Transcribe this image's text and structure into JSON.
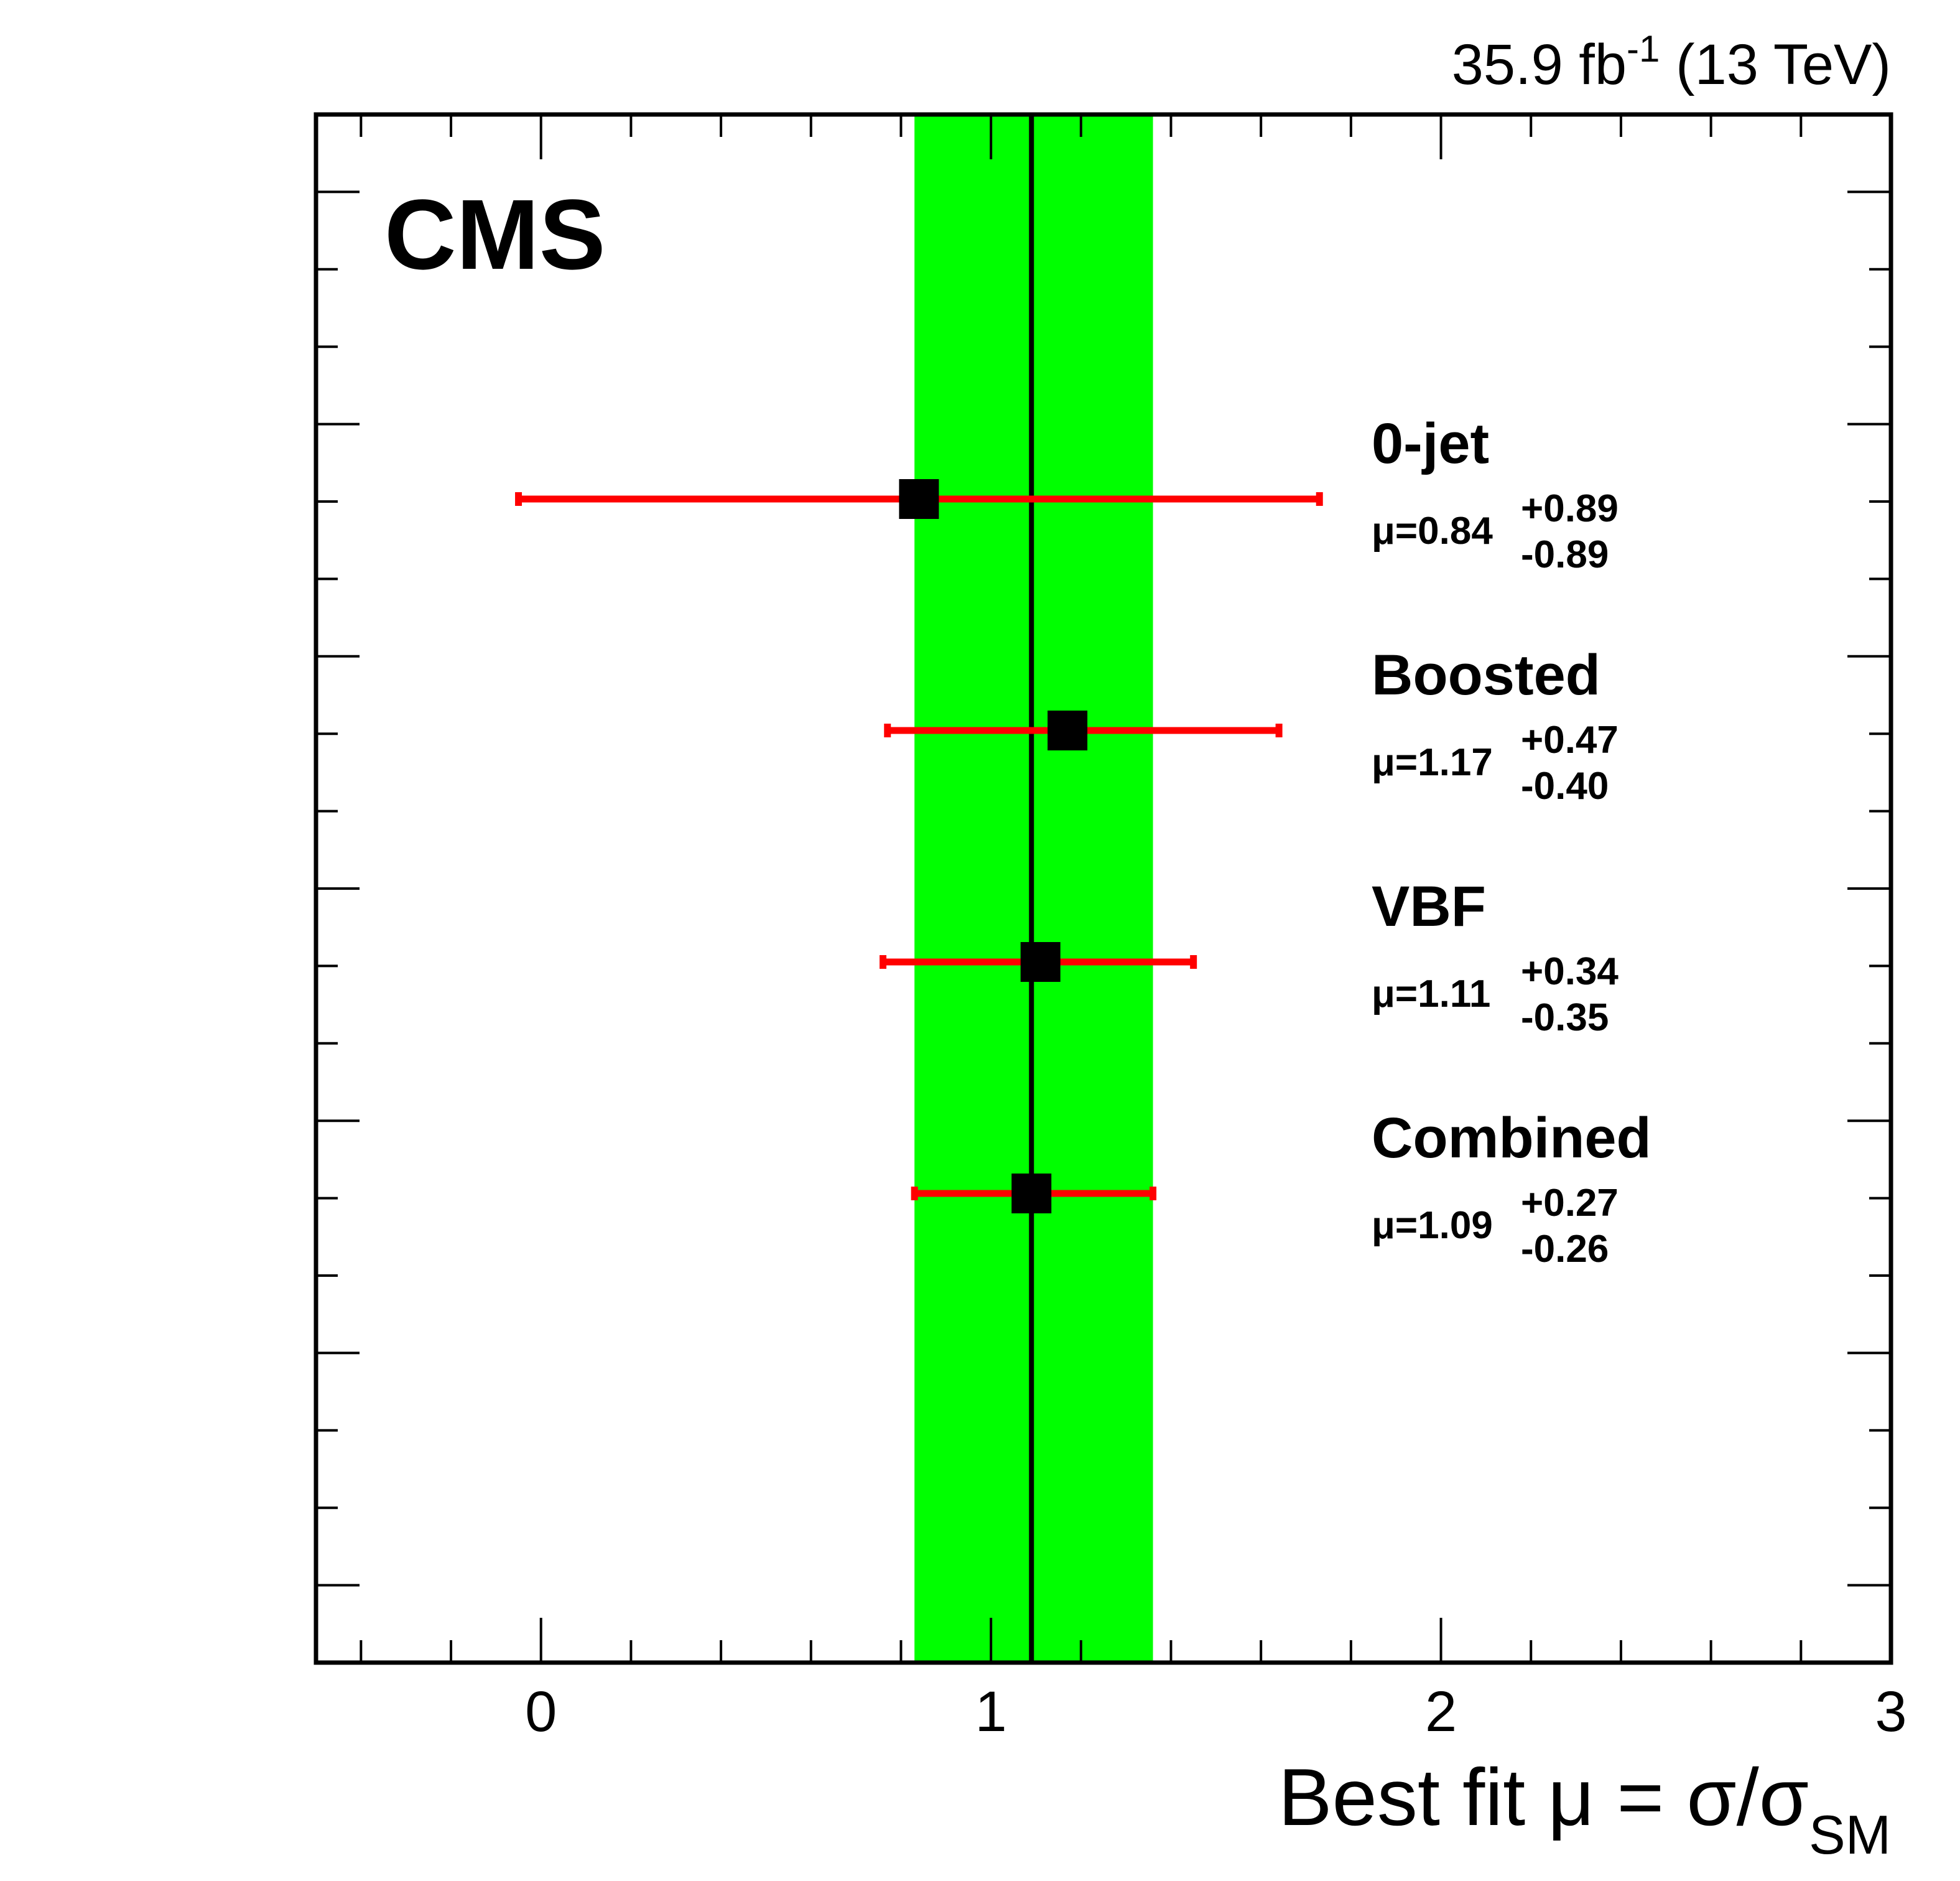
{
  "chart_data": {
    "type": "scatter",
    "lumi_label": {
      "prefix": "35.9 fb",
      "superscript": "-1",
      "suffix": " (13 TeV)"
    },
    "experiment_label": "CMS",
    "xlabel": {
      "main": "Best fit μ = σ/σ",
      "subscript": "SM"
    },
    "xlim": [
      -0.5,
      3.0
    ],
    "x_ticks": [
      0,
      1,
      2,
      3
    ],
    "x_tick_labels": [
      "0",
      "1",
      "2",
      "3"
    ],
    "combined_band": {
      "center": 1.09,
      "low": 0.83,
      "high": 1.36,
      "color": "#00ff00",
      "line_color": "#000000"
    },
    "points": [
      {
        "name": "0-jet",
        "mu_label": "μ=0.84",
        "value": 0.84,
        "up": 0.89,
        "down": 0.89,
        "up_label": "+0.89",
        "down_label": "-0.89"
      },
      {
        "name": "Boosted",
        "mu_label": "μ=1.17",
        "value": 1.17,
        "up": 0.47,
        "down": 0.4,
        "up_label": "+0.47",
        "down_label": "-0.40"
      },
      {
        "name": "VBF",
        "mu_label": "μ=1.11",
        "value": 1.11,
        "up": 0.34,
        "down": 0.35,
        "up_label": "+0.34",
        "down_label": "-0.35"
      },
      {
        "name": "Combined",
        "mu_label": "μ=1.09",
        "value": 1.09,
        "up": 0.27,
        "down": 0.26,
        "up_label": "+0.27",
        "down_label": "-0.26"
      }
    ],
    "marker_color": "#000000",
    "errorbar_color": "#ff0000",
    "grid": false
  }
}
